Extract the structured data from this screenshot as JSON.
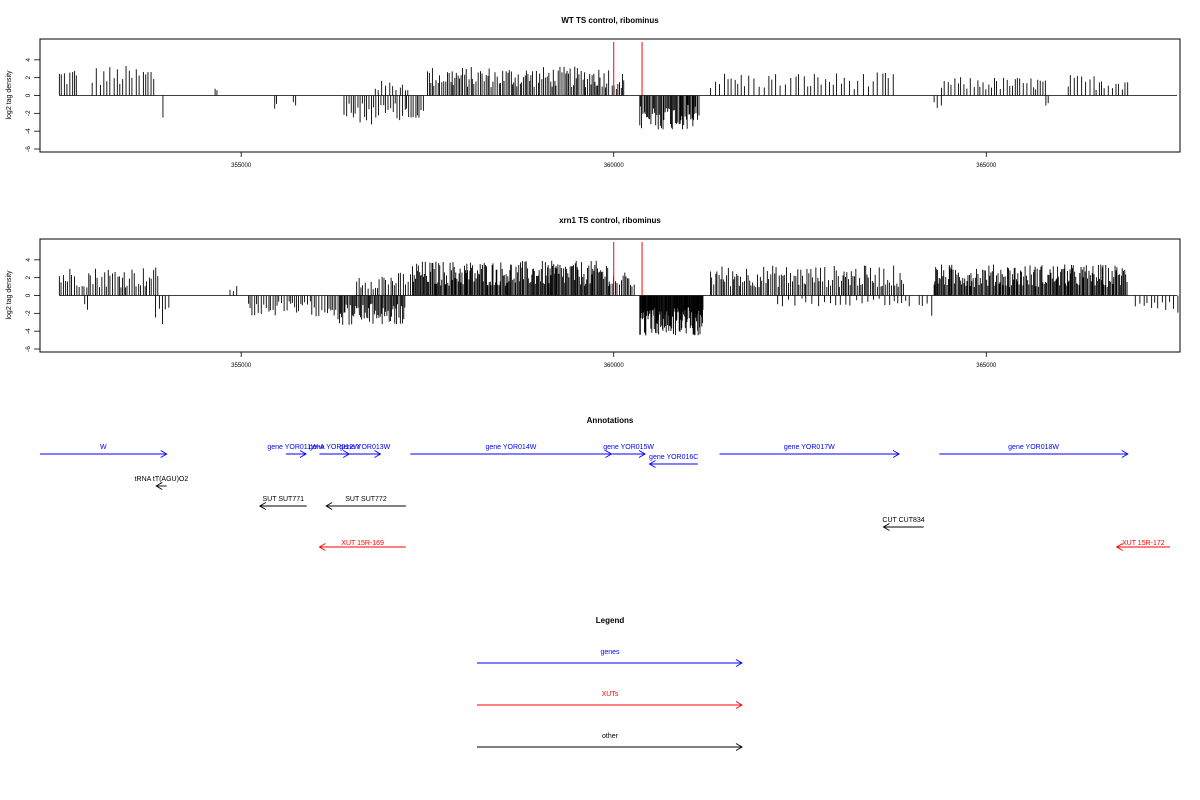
{
  "chart_data": [
    {
      "type": "bar",
      "title": "WT TS control, ribominus",
      "ylabel": "log2 tag density",
      "ylim": [
        -6,
        6
      ],
      "yticks": [
        -6,
        -4,
        -2,
        0,
        2,
        4
      ],
      "xlim": [
        352300,
        367600
      ],
      "xticks": [
        355000,
        360000,
        365000
      ],
      "markers": [
        360000,
        360380
      ],
      "marker_color": "#ff0000",
      "bar_color": "#000000",
      "segments": [
        {
          "from": 352560,
          "to": 352800,
          "sign": 1,
          "amp": 2.5,
          "step": 30
        },
        {
          "from": 353000,
          "to": 353850,
          "sign": 1,
          "amp": 2.6,
          "step": 45
        },
        {
          "from": 353950,
          "to": 354000,
          "sign": -1,
          "amp": 3.3,
          "step": 40
        },
        {
          "from": 354650,
          "to": 354700,
          "sign": 1,
          "amp": 1.0,
          "step": 40
        },
        {
          "from": 355450,
          "to": 355500,
          "sign": -1,
          "amp": 1.5,
          "step": 40
        },
        {
          "from": 355700,
          "to": 355750,
          "sign": -1,
          "amp": 1.0,
          "step": 40
        },
        {
          "from": 356380,
          "to": 357450,
          "sign": -1,
          "amp": 2.5,
          "step": 28
        },
        {
          "from": 356800,
          "to": 357250,
          "sign": 1,
          "amp": 1.3,
          "step": 45
        },
        {
          "from": 357500,
          "to": 359950,
          "sign": 1,
          "amp": 2.5,
          "step": 22
        },
        {
          "from": 359980,
          "to": 360150,
          "sign": 1,
          "amp": 2.0,
          "step": 25
        },
        {
          "from": 360350,
          "to": 361150,
          "sign": -1,
          "amp": 3.0,
          "step": 15
        },
        {
          "from": 361300,
          "to": 363800,
          "sign": 1,
          "amp": 2.0,
          "step": 55
        },
        {
          "from": 364300,
          "to": 364400,
          "sign": -1,
          "amp": 1.1,
          "step": 50
        },
        {
          "from": 364400,
          "to": 365800,
          "sign": 1,
          "amp": 1.6,
          "step": 40
        },
        {
          "from": 365800,
          "to": 365850,
          "sign": -1,
          "amp": 0.9,
          "step": 40
        },
        {
          "from": 366100,
          "to": 366900,
          "sign": 1,
          "amp": 1.8,
          "step": 45
        }
      ]
    },
    {
      "type": "bar",
      "title": "xrn1 TS control, ribominus",
      "ylabel": "log2 tag density",
      "ylim": [
        -6,
        6
      ],
      "yticks": [
        -6,
        -4,
        -2,
        0,
        2,
        4
      ],
      "xlim": [
        352300,
        367600
      ],
      "xticks": [
        355000,
        360000,
        365000
      ],
      "markers": [
        360000,
        360380
      ],
      "marker_color": "#ff0000",
      "bar_color": "#000000",
      "segments": [
        {
          "from": 352560,
          "to": 353900,
          "sign": 1,
          "amp": 2.5,
          "step": 30
        },
        {
          "from": 352900,
          "to": 352950,
          "sign": -1,
          "amp": 2.0,
          "step": 40
        },
        {
          "from": 353850,
          "to": 354050,
          "sign": -1,
          "amp": 2.5,
          "step": 40
        },
        {
          "from": 354850,
          "to": 354950,
          "sign": 1,
          "amp": 0.9,
          "step": 40
        },
        {
          "from": 355100,
          "to": 356300,
          "sign": -1,
          "amp": 1.8,
          "step": 30
        },
        {
          "from": 356300,
          "to": 357200,
          "sign": -1,
          "amp": 2.6,
          "step": 15
        },
        {
          "from": 356550,
          "to": 357300,
          "sign": 1,
          "amp": 2.0,
          "step": 30
        },
        {
          "from": 357300,
          "to": 359950,
          "sign": 1,
          "amp": 3.0,
          "step": 14
        },
        {
          "from": 359950,
          "to": 360300,
          "sign": 1,
          "amp": 2.0,
          "step": 25
        },
        {
          "from": 360350,
          "to": 361200,
          "sign": -1,
          "amp": 3.5,
          "step": 8
        },
        {
          "from": 361300,
          "to": 363900,
          "sign": 1,
          "amp": 2.6,
          "step": 22
        },
        {
          "from": 362200,
          "to": 364000,
          "sign": -1,
          "amp": 1.0,
          "step": 70
        },
        {
          "from": 364100,
          "to": 364300,
          "sign": -1,
          "amp": 2.0,
          "step": 60
        },
        {
          "from": 364300,
          "to": 366900,
          "sign": 1,
          "amp": 2.7,
          "step": 14
        },
        {
          "from": 367000,
          "to": 367600,
          "sign": -1,
          "amp": 1.7,
          "step": 45
        }
      ]
    }
  ],
  "annotations": {
    "title": "Annotations",
    "genes": [
      {
        "label": "W",
        "from": 352300,
        "to": 354000,
        "dir": "right"
      },
      {
        "label": "gene YOR011W-A",
        "from": 355600,
        "to": 355870,
        "dir": "right"
      },
      {
        "label": "gene YOR012W",
        "from": 356050,
        "to": 356450,
        "dir": "right"
      },
      {
        "label": "gene YOR013W",
        "from": 356450,
        "to": 356870,
        "dir": "right"
      },
      {
        "label": "gene YOR014W",
        "from": 357270,
        "to": 359970,
        "dir": "right"
      },
      {
        "label": "gene YOR015W",
        "from": 359980,
        "to": 360420,
        "dir": "right"
      },
      {
        "label": "gene YOR016C",
        "from": 360480,
        "to": 361130,
        "dir": "left"
      },
      {
        "label": "gene YOR017W",
        "from": 361420,
        "to": 363830,
        "dir": "right"
      },
      {
        "label": "gene YOR018W",
        "from": 364370,
        "to": 366900,
        "dir": "right"
      }
    ],
    "others": [
      {
        "label": "tRNA tT(AGU)O2",
        "from": 353860,
        "to": 354000,
        "dir": "left"
      },
      {
        "label": "SUT SUT771",
        "from": 355250,
        "to": 355880,
        "dir": "left"
      },
      {
        "label": "SUT SUT772",
        "from": 356140,
        "to": 357210,
        "dir": "left"
      },
      {
        "label": "CUT CUT834",
        "from": 363620,
        "to": 364160,
        "dir": "left"
      }
    ],
    "xuts": [
      {
        "label": "XUT 15R-169",
        "from": 356050,
        "to": 357210,
        "dir": "left"
      },
      {
        "label": "XUT 15R-172",
        "from": 366750,
        "to": 367600,
        "dir": "left"
      }
    ]
  },
  "legend": {
    "title": "Legend",
    "items": [
      {
        "label": "genes",
        "color": "#0000ff"
      },
      {
        "label": "XUTs",
        "color": "#ff0000"
      },
      {
        "label": "other",
        "color": "#000000"
      }
    ]
  },
  "colors": {
    "genes": "#0000ff",
    "xuts": "#ff0000",
    "other": "#000000",
    "markers": "#ff0000"
  }
}
